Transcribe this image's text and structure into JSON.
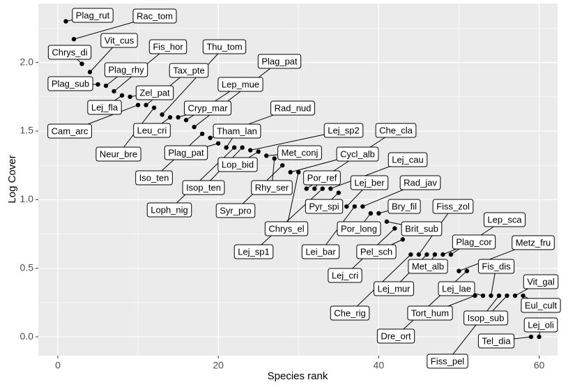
{
  "chart_data": {
    "type": "scatter",
    "x_label": "Species rank",
    "y_label": "Log Cover",
    "x": [
      1,
      2,
      3,
      4,
      5,
      6,
      7,
      8,
      9,
      10,
      11,
      12,
      13,
      14,
      15,
      16,
      17,
      18,
      19,
      20,
      21,
      22,
      23,
      24,
      25,
      26,
      27,
      28,
      29,
      30,
      31,
      32,
      33,
      34,
      35,
      36,
      37,
      38,
      39,
      40,
      41,
      42,
      43,
      44,
      45,
      46,
      47,
      48,
      49,
      50,
      51,
      52,
      53,
      54,
      55,
      56,
      57,
      58,
      59,
      60
    ],
    "y": [
      2.3,
      2.17,
      1.99,
      1.93,
      1.84,
      1.83,
      1.79,
      1.76,
      1.75,
      1.69,
      1.69,
      1.67,
      1.62,
      1.6,
      1.6,
      1.58,
      1.53,
      1.48,
      1.45,
      1.41,
      1.38,
      1.38,
      1.38,
      1.36,
      1.35,
      1.32,
      1.3,
      1.25,
      1.2,
      1.2,
      1.08,
      1.08,
      1.08,
      1.08,
      1.05,
      0.95,
      0.95,
      0.95,
      0.9,
      0.9,
      0.84,
      0.79,
      0.71,
      0.6,
      0.6,
      0.6,
      0.6,
      0.6,
      0.6,
      0.48,
      0.48,
      0.3,
      0.3,
      0.3,
      0.3,
      0.3,
      0.3,
      0.3,
      0,
      0
    ],
    "labels": [
      "Plag_rut",
      "Rac_tom",
      "Chrys_di",
      "Vit_cus",
      "Plag_sub",
      "Plag_rhy",
      "Fis_hor",
      "Lej_fla",
      "Zel_pat",
      "Cam_arc",
      "Tax_pte",
      "Neur_bre",
      "Thu_tom",
      "Leu_cri",
      "Cryp_mar",
      "Lep_mue",
      "Plag_pat",
      "Iso_ten",
      "Rad_nud",
      "Plag_pat",
      "Tham_lan",
      "Loph_nig",
      "Isop_ten",
      "Lej_sp2",
      "Lop_bid",
      "Met_conj",
      "Rhy_ser",
      "Syr_pro",
      "Cycl_alb",
      "Chrys_el",
      "Che_cla",
      "Por_ref",
      "Lej_sp1",
      "Lej_cau",
      "Pyr_spi",
      "Lej_ber",
      "Lei_bar",
      "Rad_jav",
      "Por_long",
      "Bry_fil",
      "Brit_sub",
      "Lej_cri",
      "Pel_sch",
      "Che_rig",
      "Fiss_zol",
      "Lej_mur",
      "Met_alb",
      "Plag_cor",
      "Lep_sca",
      "Metz_fru",
      "Dre_ort",
      "Tort_hum",
      "Lej_lae",
      "Fis_dis",
      "Fiss_pel",
      "Isop_sub",
      "Vit_gal",
      "Eul_cult",
      "Tel_dia",
      "Lej_oli"
    ],
    "color": "#000000",
    "xlim": [
      -2.43,
      62.3
    ],
    "xticks": [
      0,
      20,
      40,
      60
    ],
    "ylim": [
      -0.137,
      2.43
    ],
    "yticks": [
      {
        "value": 0,
        "label": "0.0"
      },
      0.5,
      {
        "value": 1,
        "label": "1.0"
      },
      1.5,
      {
        "value": 2,
        "label": "2.0"
      }
    ],
    "grid": true
  }
}
